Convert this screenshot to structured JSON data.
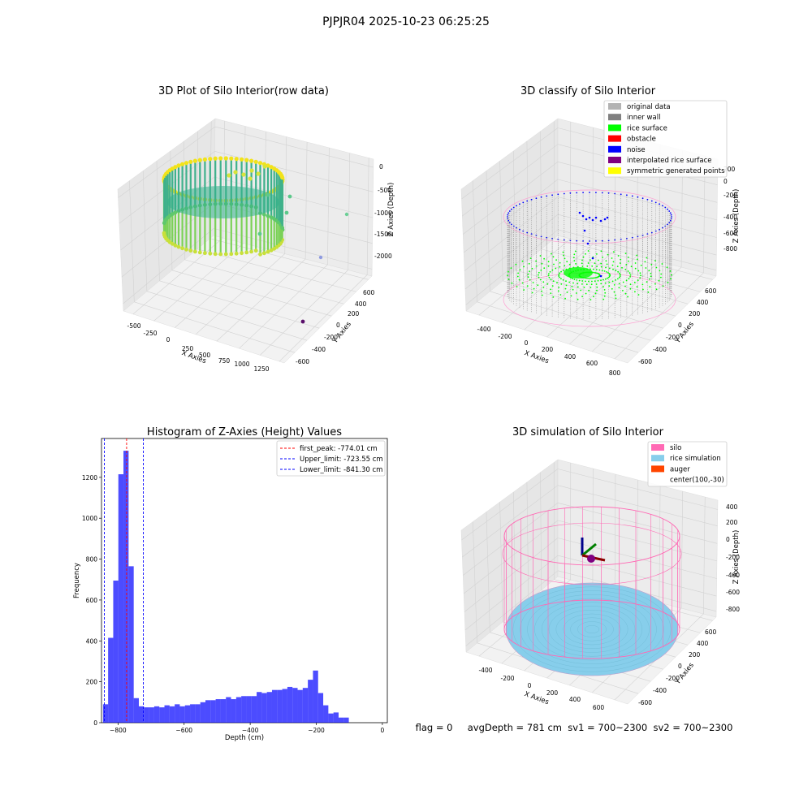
{
  "suptitle": "PJPJR04 2025-10-23 06:25:25",
  "status_line": "flag = 0     avgDepth = 781 cm  sv1 = 700~2300  sv2 = 700~2300",
  "panels": {
    "raw": {
      "title": "3D Plot of Silo Interior(row data)",
      "xlabel": "X Axies",
      "ylabel": "Y Axies",
      "zlabel": "Z Axies (Depth)",
      "xticks": [
        "-500",
        "-250",
        "0",
        "250",
        "500",
        "750",
        "1000",
        "1250"
      ],
      "yticks": [
        "-600",
        "-400",
        "-200",
        "0",
        "200",
        "400",
        "600"
      ],
      "zticks": [
        "0",
        "-500",
        "-1000",
        "-1500",
        "-2000"
      ]
    },
    "classify": {
      "title": "3D classify of Silo Interior",
      "xlabel": "X Axies",
      "ylabel": "Y Axies",
      "zlabel": "Z Axies (Depth)",
      "xticks": [
        "-400",
        "-200",
        "0",
        "200",
        "400",
        "600",
        "800"
      ],
      "yticks": [
        "-600",
        "-400",
        "-200",
        "0",
        "200",
        "400",
        "600"
      ],
      "zticks": [
        "200",
        "0",
        "-200",
        "-400",
        "-600",
        "-800"
      ],
      "legend": [
        {
          "label": "original data",
          "color": "#b3b3b3"
        },
        {
          "label": "inner wall",
          "color": "#808080"
        },
        {
          "label": "rice surface",
          "color": "#00ff00"
        },
        {
          "label": "obstacle",
          "color": "#ff0000"
        },
        {
          "label": "noise",
          "color": "#0000ff"
        },
        {
          "label": "interpolated rice surface",
          "color": "#800080"
        },
        {
          "label": "symmetric generated points",
          "color": "#ffff00"
        }
      ]
    },
    "simulation": {
      "title": "3D simulation of Silo Interior",
      "xlabel": "X Axies",
      "ylabel": "Y Axies",
      "zlabel": "Z Axies (Depth)",
      "xticks": [
        "-400",
        "-200",
        "0",
        "200",
        "400",
        "600"
      ],
      "yticks": [
        "-600",
        "-400",
        "-200",
        "0",
        "200",
        "400",
        "600"
      ],
      "zticks": [
        "400",
        "200",
        "0",
        "-200",
        "-400",
        "-600",
        "-800"
      ],
      "legend": [
        {
          "label": "silo",
          "color": "#ff69b4"
        },
        {
          "label": "rice simulation",
          "color": "#87ceeb"
        },
        {
          "label": "auger",
          "color": "#ff4500"
        },
        {
          "label": "center(100,-30)",
          "color": "#ffffff"
        }
      ]
    }
  },
  "chart_data": [
    {
      "type": "scatter",
      "title": "3D Plot of Silo Interior(row data)",
      "xlabel": "X Axies",
      "ylabel": "Y Axies",
      "zlabel": "Z Axies (Depth)",
      "xlim": [
        -600,
        1350
      ],
      "ylim": [
        -700,
        700
      ],
      "zlim": [
        -2200,
        100
      ],
      "description_series": [
        {
          "name": "silo wall points",
          "shape": "cylinder",
          "center": [
            0,
            0
          ],
          "radius": 650,
          "z_range": [
            -1300,
            -100
          ]
        },
        {
          "name": "outliers",
          "points": [
            [
              1250,
              0,
              -1100
            ],
            [
              1150,
              -300,
              -1900
            ],
            [
              1000,
              -600,
              -2200
            ]
          ]
        }
      ]
    },
    {
      "type": "scatter",
      "title": "3D classify of Silo Interior",
      "xlabel": "X Axies",
      "ylabel": "Y Axies",
      "zlabel": "Z Axies (Depth)",
      "xlim": [
        -500,
        850
      ],
      "ylim": [
        -700,
        700
      ],
      "zlim": [
        -900,
        250
      ]
    },
    {
      "type": "bar",
      "title": "Histogram of Z-Axies (Height) Values",
      "xlabel": "Depth (cm)",
      "ylabel": "Frequency",
      "xlim": [
        -850,
        15
      ],
      "ylim": [
        0,
        1390
      ],
      "xticks": [
        -800,
        -600,
        -400,
        -200,
        0
      ],
      "yticks": [
        0,
        200,
        400,
        600,
        800,
        1000,
        1200
      ],
      "bin_start": -845.5,
      "bin_width": 15.5,
      "values": [
        90,
        415,
        695,
        1215,
        1330,
        765,
        120,
        80,
        75,
        75,
        80,
        75,
        85,
        80,
        90,
        80,
        85,
        90,
        90,
        100,
        110,
        110,
        115,
        115,
        125,
        115,
        125,
        130,
        130,
        130,
        150,
        145,
        150,
        160,
        160,
        165,
        175,
        170,
        160,
        170,
        210,
        255,
        145,
        85,
        45,
        50,
        25,
        25
      ],
      "bar_color": "#0000ff",
      "vlines": [
        {
          "label": "first_peak: -774.01 cm",
          "x": -774.01,
          "color": "#ff0000"
        },
        {
          "label": "Upper_limit: -723.55 cm",
          "x": -723.55,
          "color": "#0000ff"
        },
        {
          "label": "Lower_limit: -841.30 cm",
          "x": -841.3,
          "color": "#0000ff"
        }
      ],
      "legend_position": "top-right"
    },
    {
      "type": "scatter",
      "title": "3D simulation of Silo Interior",
      "xlabel": "X Axies",
      "ylabel": "Y Axies",
      "zlabel": "Z Axies (Depth)",
      "xlim": [
        -500,
        700
      ],
      "ylim": [
        -700,
        700
      ],
      "zlim": [
        -900,
        450
      ]
    }
  ]
}
